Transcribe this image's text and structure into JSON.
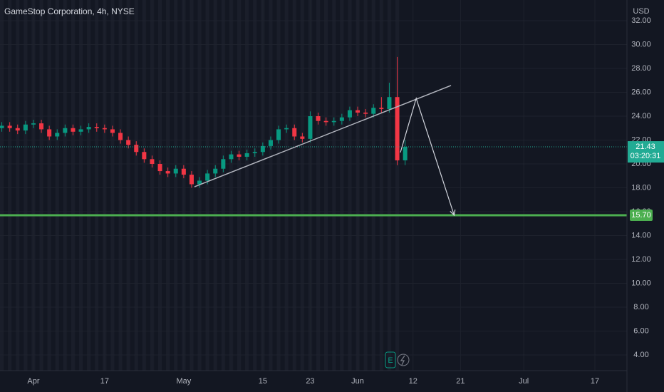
{
  "chart_data": {
    "type": "candlestick",
    "title": "GameStop Corporation, 4h, NYSE",
    "currency": "USD",
    "x": [
      -4,
      -3,
      -2,
      -1,
      0,
      1,
      2,
      3,
      4,
      5,
      6,
      7,
      8,
      9,
      10,
      11,
      12,
      13,
      14,
      15,
      16,
      17,
      18,
      19,
      20,
      21,
      22,
      23,
      24,
      25,
      26,
      27,
      28,
      29,
      30,
      31,
      32,
      33,
      34,
      35,
      36,
      37,
      38,
      39,
      40,
      41,
      42,
      43,
      44,
      45,
      46,
      47
    ],
    "open": [
      23.0,
      23.2,
      23.0,
      22.8,
      23.3,
      23.4,
      22.9,
      22.3,
      22.6,
      23.0,
      22.7,
      22.9,
      23.1,
      23.0,
      22.9,
      22.6,
      22.0,
      21.6,
      21.0,
      20.4,
      20.0,
      19.4,
      19.2,
      19.6,
      19.1,
      18.3,
      18.6,
      19.2,
      19.6,
      20.4,
      20.8,
      20.6,
      20.9,
      21.0,
      21.5,
      22.0,
      22.9,
      23.0,
      22.3,
      22.1,
      24.0,
      23.6,
      23.5,
      23.6,
      23.9,
      24.5,
      24.3,
      24.2,
      24.7,
      24.6,
      25.6,
      20.3
    ],
    "high": [
      23.5,
      23.5,
      23.3,
      23.6,
      23.7,
      23.7,
      23.2,
      22.9,
      23.3,
      23.3,
      23.2,
      23.4,
      23.4,
      23.3,
      23.2,
      22.9,
      22.3,
      21.9,
      21.3,
      20.7,
      20.3,
      19.7,
      19.9,
      19.9,
      19.4,
      18.9,
      19.5,
      19.9,
      20.7,
      21.1,
      21.1,
      21.2,
      21.3,
      21.8,
      22.3,
      23.2,
      23.3,
      23.3,
      22.6,
      24.4,
      24.3,
      23.9,
      23.9,
      24.2,
      24.8,
      24.8,
      24.6,
      25.0,
      25.6,
      26.8,
      28.96,
      22.0
    ],
    "low": [
      22.7,
      22.7,
      22.5,
      22.5,
      23.0,
      22.6,
      22.0,
      22.0,
      22.3,
      22.4,
      22.4,
      22.6,
      22.7,
      22.6,
      22.3,
      21.7,
      21.3,
      20.7,
      20.1,
      19.7,
      19.1,
      18.9,
      18.9,
      18.8,
      18.0,
      18.0,
      18.3,
      18.9,
      19.3,
      20.1,
      20.3,
      20.3,
      20.6,
      20.7,
      21.2,
      21.7,
      22.6,
      22.0,
      21.8,
      21.8,
      23.3,
      23.2,
      23.2,
      23.3,
      23.6,
      24.0,
      23.9,
      23.9,
      24.3,
      24.3,
      19.9,
      19.9
    ],
    "close": [
      23.2,
      23.0,
      22.8,
      23.3,
      23.4,
      22.9,
      22.3,
      22.6,
      23.0,
      22.7,
      22.9,
      23.1,
      23.0,
      22.9,
      22.6,
      22.0,
      21.6,
      21.0,
      20.4,
      20.0,
      19.4,
      19.2,
      19.6,
      19.1,
      18.3,
      18.6,
      19.2,
      19.6,
      20.4,
      20.8,
      20.6,
      20.9,
      21.0,
      21.5,
      22.0,
      22.9,
      23.0,
      22.3,
      22.1,
      24.0,
      23.6,
      23.5,
      23.6,
      23.9,
      24.5,
      24.3,
      24.2,
      24.7,
      24.6,
      25.6,
      20.3,
      21.43
    ],
    "up_color": "#089981",
    "down_color": "#f23645",
    "xlim": [
      -4.23,
      75.05
    ],
    "xticks": [
      {
        "value": 0,
        "label": "Apr"
      },
      {
        "value": 9,
        "label": "17"
      },
      {
        "value": 19,
        "label": "May"
      },
      {
        "value": 29,
        "label": "15"
      },
      {
        "value": 35,
        "label": "23"
      },
      {
        "value": 41,
        "label": "Jun"
      },
      {
        "value": 48,
        "label": "12"
      },
      {
        "value": 54,
        "label": "21"
      },
      {
        "value": 62,
        "label": "Jul"
      },
      {
        "value": 71,
        "label": "17"
      }
    ],
    "ylim": [
      2.69,
      33.73
    ],
    "yticks": [
      {
        "value": 4,
        "label": "4.00"
      },
      {
        "value": 6,
        "label": "6.00"
      },
      {
        "value": 8,
        "label": "8.00"
      },
      {
        "value": 10,
        "label": "10.00"
      },
      {
        "value": 12,
        "label": "12.00"
      },
      {
        "value": 14,
        "label": "14.00"
      },
      {
        "value": 16,
        "label": "16.00"
      },
      {
        "value": 18,
        "label": "18.00"
      },
      {
        "value": 20,
        "label": "20.00"
      },
      {
        "value": 22,
        "label": "22.00"
      },
      {
        "value": 24,
        "label": "24.00"
      },
      {
        "value": 26,
        "label": "26.00"
      },
      {
        "value": 28,
        "label": "28.00"
      },
      {
        "value": 30,
        "label": "30.00"
      },
      {
        "value": 32,
        "label": "32.00"
      }
    ],
    "grid": true,
    "last_price": {
      "value": 21.43,
      "countdown": "03:20:31",
      "color": "#22ab94"
    },
    "trend_line": {
      "x": [
        20.36,
        52.8
      ],
      "y": [
        18.09,
        26.57
      ],
      "color": "#b2b5be"
    },
    "arrow_path": {
      "x": [
        46.4,
        48.4,
        53.2
      ],
      "y": [
        20.96,
        25.49,
        15.7
      ],
      "color": "#d1d4dc"
    },
    "horizontal_line": {
      "value": 15.7,
      "label": "15.70",
      "color": "#4caf50"
    },
    "event_marker": "E"
  }
}
